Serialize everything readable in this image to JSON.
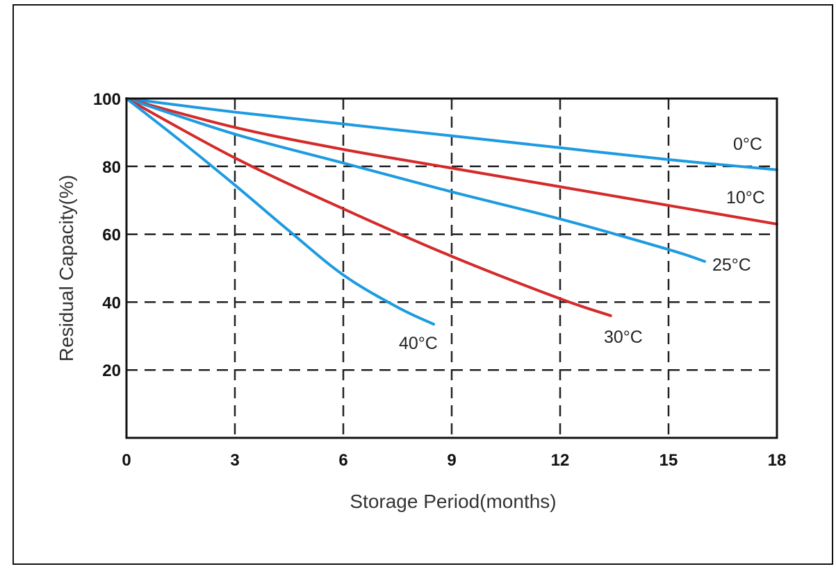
{
  "chart_data": {
    "type": "line",
    "title": "",
    "xlabel": "Storage Period(months)",
    "ylabel": "Residual Capacity(%)",
    "xlim": [
      0,
      18
    ],
    "ylim": [
      0,
      100
    ],
    "x_ticks": [
      0,
      3,
      6,
      9,
      12,
      15,
      18
    ],
    "x_tick_labels": [
      "0",
      "3",
      "6",
      "9",
      "12",
      "15",
      "18"
    ],
    "y_ticks": [
      20,
      40,
      60,
      80,
      100
    ],
    "y_tick_labels": [
      "20",
      "40",
      "60",
      "80",
      "100"
    ],
    "grid": true,
    "legend": "labels placed at line ends",
    "series": [
      {
        "name": "0°C",
        "color": "#1e9be0",
        "x": [
          0,
          3,
          6,
          9,
          12,
          15,
          18
        ],
        "y": [
          100,
          96,
          92.5,
          89,
          85.5,
          82,
          79
        ]
      },
      {
        "name": "10°C",
        "color": "#d42a2a",
        "x": [
          0,
          3,
          6,
          9,
          12,
          15,
          18
        ],
        "y": [
          100,
          91.5,
          85,
          79.5,
          74,
          68.5,
          63
        ]
      },
      {
        "name": "25°C",
        "color": "#1e9be0",
        "x": [
          0,
          3,
          6,
          9,
          12,
          15,
          16
        ],
        "y": [
          100,
          89.5,
          81,
          72.5,
          64.5,
          55.5,
          52
        ]
      },
      {
        "name": "30°C",
        "color": "#d42a2a",
        "x": [
          0,
          3,
          6,
          9,
          12,
          13.4
        ],
        "y": [
          100,
          82.5,
          67.5,
          53.5,
          41,
          36
        ]
      },
      {
        "name": "40°C",
        "color": "#1e9be0",
        "x": [
          0,
          1.5,
          3,
          4.5,
          6,
          7.5,
          8.5
        ],
        "y": [
          100,
          87.5,
          74.5,
          61,
          48,
          38.5,
          33.5
        ]
      }
    ]
  }
}
